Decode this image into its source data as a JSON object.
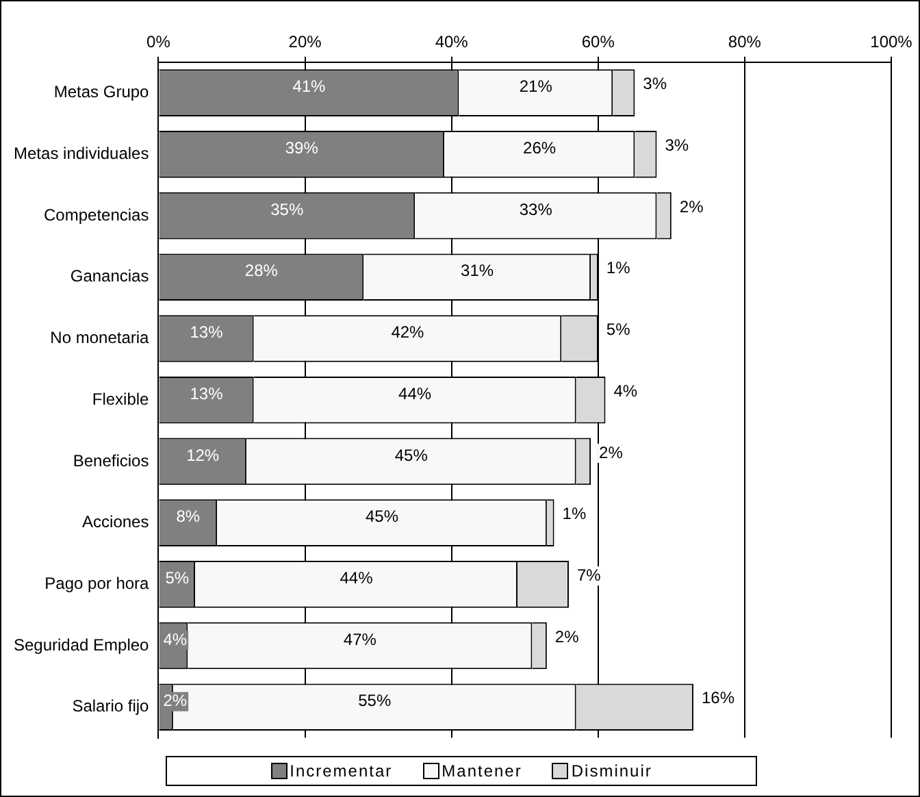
{
  "chart_data": {
    "type": "bar",
    "orientation": "horizontal",
    "stacked": true,
    "categories": [
      "Metas Grupo",
      "Metas individuales",
      "Competencias",
      "Ganancias",
      "No monetaria",
      "Flexible",
      "Beneficios",
      "Acciones",
      "Pago por hora",
      "Seguridad Empleo",
      "Salario fijo"
    ],
    "series": [
      {
        "name": "Incrementar",
        "color": "#808080",
        "values": [
          41,
          39,
          35,
          28,
          13,
          13,
          12,
          8,
          5,
          4,
          2
        ],
        "value_labels": [
          "41%",
          "39%",
          "35%",
          "28%",
          "13%",
          "13%",
          "12%",
          "8%",
          "5%",
          "4%",
          "2%"
        ]
      },
      {
        "name": "Mantener",
        "color": "#f8f8f8",
        "values": [
          21,
          26,
          33,
          31,
          42,
          44,
          45,
          45,
          44,
          47,
          55
        ],
        "value_labels": [
          "21%",
          "26%",
          "33%",
          "31%",
          "42%",
          "44%",
          "45%",
          "45%",
          "44%",
          "47%",
          "55%"
        ]
      },
      {
        "name": "Disminuir",
        "color": "#d9d9d9",
        "values": [
          3,
          3,
          2,
          1,
          5,
          4,
          2,
          1,
          7,
          2,
          16
        ],
        "value_labels": [
          "3%",
          "3%",
          "2%",
          "1%",
          "5%",
          "4%",
          "2%",
          "1%",
          "7%",
          "2%",
          "16%"
        ]
      }
    ],
    "xlim": [
      0,
      100
    ],
    "xticks": [
      {
        "value": 0,
        "label": "0%"
      },
      {
        "value": 20,
        "label": "20%"
      },
      {
        "value": 40,
        "label": "40%"
      },
      {
        "value": 60,
        "label": "60%"
      },
      {
        "value": 80,
        "label": "80%"
      },
      {
        "value": 100,
        "label": "100%"
      }
    ],
    "grid": "x",
    "legend": "bottom"
  }
}
